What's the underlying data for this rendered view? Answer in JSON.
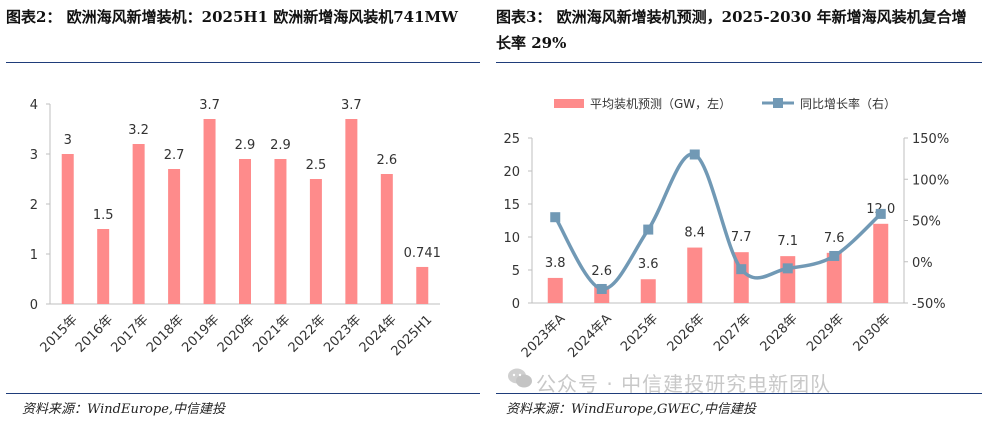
{
  "chart_data": [
    {
      "type": "bar",
      "title": "图表2： 欧洲海风新增装机：2025H1 欧洲新增海风装机741MW",
      "categories": [
        "2015年",
        "2016年",
        "2017年",
        "2018年",
        "2019年",
        "2020年",
        "2021年",
        "2022年",
        "2023年",
        "2024年",
        "2025H1"
      ],
      "values": [
        3,
        1.5,
        3.2,
        2.7,
        3.7,
        2.9,
        2.9,
        2.5,
        3.7,
        2.6,
        0.741
      ],
      "value_labels": [
        "3",
        "1.5",
        "3.2",
        "2.7",
        "3.7",
        "2.9",
        "2.9",
        "2.5",
        "3.7",
        "2.6",
        "0.741"
      ],
      "ylim": [
        0,
        4
      ],
      "yticks": [
        "0",
        "1",
        "2",
        "3",
        "4"
      ],
      "bar_color": "#fe8b8b",
      "source": "资料来源：WindEurope,中信建投"
    },
    {
      "type": "bar+line",
      "title": "图表3： 欧洲海风新增装机预测，2025-2030 年新增海风装机复合增长率 29%",
      "categories": [
        "2023年A",
        "2024年A",
        "2025年",
        "2026年",
        "2027年",
        "2028年",
        "2029年",
        "2030年"
      ],
      "series": [
        {
          "name": "平均装机预测（GW，左）",
          "type": "bar",
          "axis": "left",
          "values": [
            3.8,
            2.6,
            3.6,
            8.4,
            7.7,
            7.1,
            7.6,
            12.0
          ],
          "value_labels": [
            "3.8",
            "2.6",
            "3.6",
            "8.4",
            "7.7",
            "7.1",
            "7.6",
            "12.0"
          ],
          "color": "#fe8b8b"
        },
        {
          "name": "同比增长率（右）",
          "type": "line",
          "axis": "right",
          "values": [
            54,
            -33,
            39,
            130,
            -9,
            -8,
            7,
            58
          ],
          "color": "#7199b5"
        }
      ],
      "ylim_left": [
        0,
        25
      ],
      "yticks_left": [
        "0",
        "5",
        "10",
        "15",
        "20",
        "25"
      ],
      "ylim_right": [
        -50,
        150
      ],
      "yticks_right": [
        "-50%",
        "0%",
        "50%",
        "100%",
        "150%"
      ],
      "legend_position": "top",
      "source": "资料来源：WindEurope,GWEC,中信建投"
    }
  ],
  "watermark": "公众号 · 中信建投研究电新团队"
}
